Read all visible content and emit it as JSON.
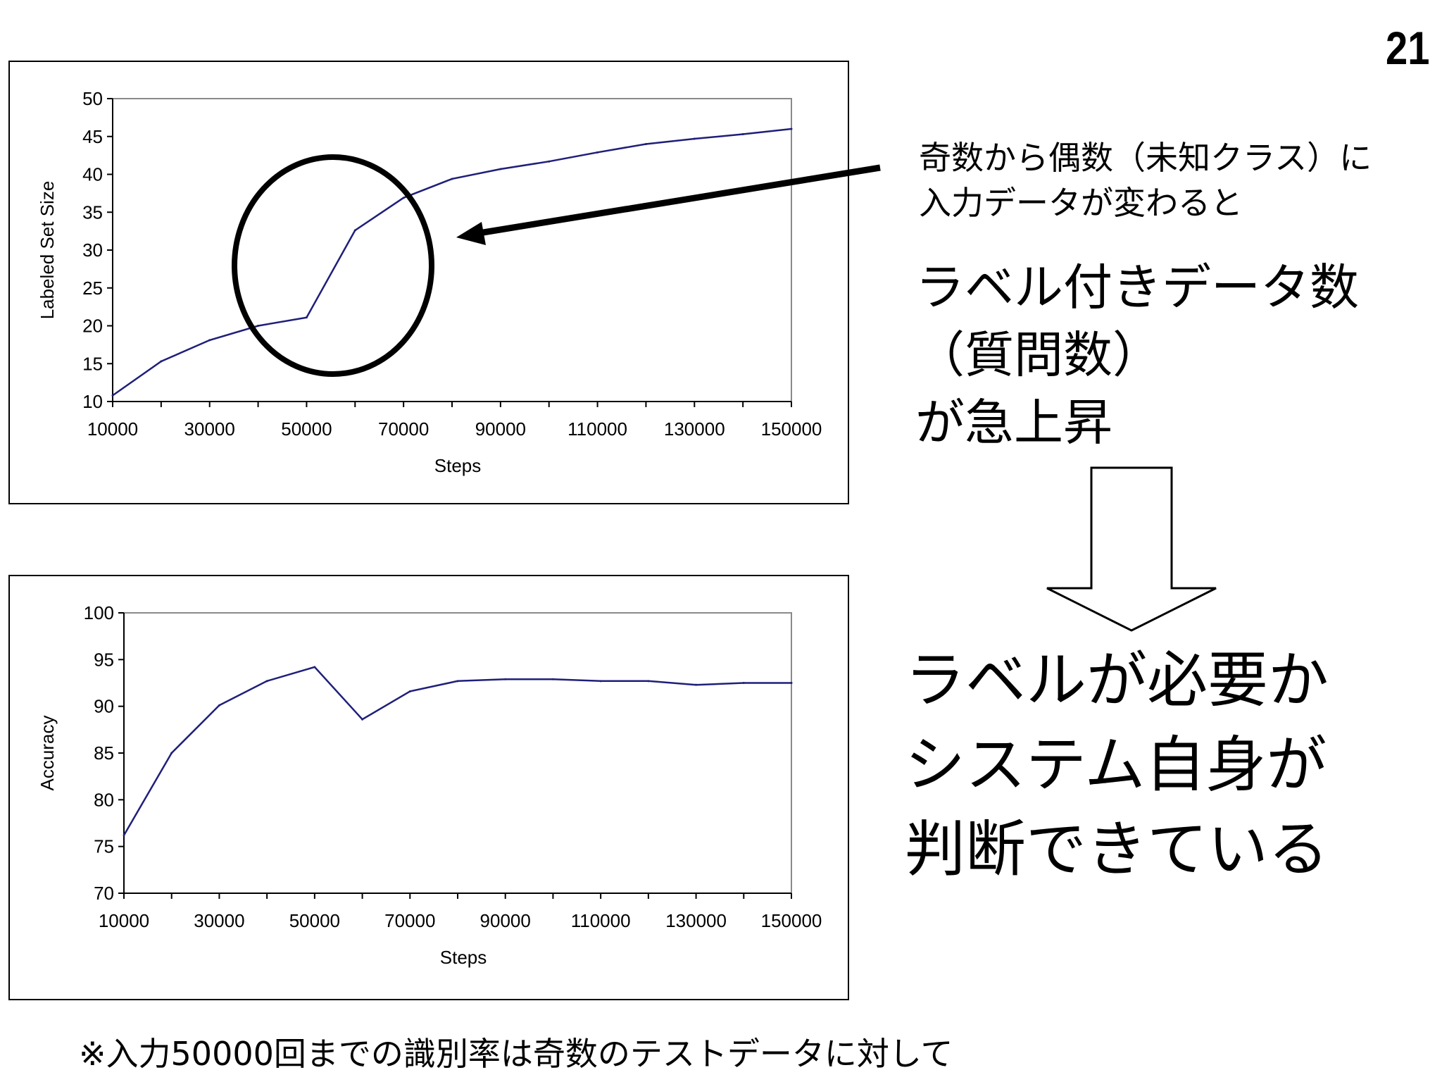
{
  "slide_number": "21",
  "callout": {
    "small_lines": [
      "奇数から偶数（未知クラス）に",
      "入力データが変わると"
    ],
    "big_lines": [
      "ラベル付きデータ数",
      "（質問数）",
      "が急上昇"
    ],
    "conclusion_lines": [
      "ラベルが必要か",
      "システム自身が",
      "判断できている"
    ]
  },
  "footnote": "※入力50000回までの識別率は奇数のテストデータに対して",
  "chart_data": [
    {
      "type": "line",
      "xlabel": "Steps",
      "ylabel": "Labeled Set Size",
      "xlim": [
        10000,
        150000
      ],
      "ylim": [
        10,
        50
      ],
      "x_ticks": [
        "10000",
        "30000",
        "50000",
        "70000",
        "90000",
        "110000",
        "130000",
        "150000"
      ],
      "y_ticks": [
        "10",
        "15",
        "20",
        "25",
        "30",
        "35",
        "40",
        "45",
        "50"
      ],
      "x": [
        10000,
        20000,
        30000,
        40000,
        50000,
        60000,
        70000,
        80000,
        90000,
        100000,
        110000,
        120000,
        130000,
        140000,
        150000
      ],
      "values": [
        10.8,
        15.3,
        18.1,
        20.0,
        21.1,
        32.6,
        36.9,
        39.4,
        40.7,
        41.7,
        42.9,
        44.0,
        44.7,
        45.3,
        46.0
      ],
      "line_color": "#1f1f7a",
      "grid": false,
      "legend": "none"
    },
    {
      "type": "line",
      "xlabel": "Steps",
      "ylabel": "Accuracy",
      "xlim": [
        10000,
        150000
      ],
      "ylim": [
        70,
        100
      ],
      "x_ticks": [
        "10000",
        "30000",
        "50000",
        "70000",
        "90000",
        "110000",
        "130000",
        "150000"
      ],
      "y_ticks": [
        "70",
        "75",
        "80",
        "85",
        "90",
        "95",
        "100"
      ],
      "x": [
        10000,
        20000,
        30000,
        40000,
        50000,
        60000,
        70000,
        80000,
        90000,
        100000,
        110000,
        120000,
        130000,
        140000,
        150000
      ],
      "values": [
        76.2,
        85.0,
        90.1,
        92.7,
        94.2,
        88.6,
        91.6,
        92.7,
        92.9,
        92.9,
        92.7,
        92.7,
        92.3,
        92.5,
        92.5
      ],
      "line_color": "#1f1f7a",
      "grid": false,
      "legend": "none"
    }
  ]
}
